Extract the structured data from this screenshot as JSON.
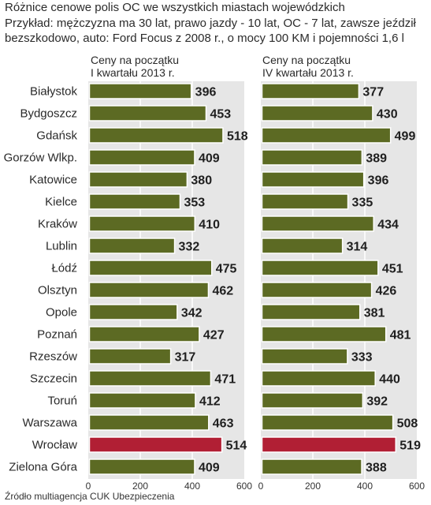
{
  "title": "Różnice cenowe polis OC we wszystkich miastach wojewódzkich",
  "subtitle": "Przykład: mężczyzna ma 30 lat, prawo jazdy - 10 lat, OC - 7 lat, zawsze jeździł bezszkodowo, auto: Ford Focus z 2008 r.,  o mocy 100 KM i pojemności 1,6 l",
  "source": "Źródło multiagencja CUK Ubezpieczenia",
  "colors": {
    "bar": "#5c6a23",
    "highlight": "#b11f34",
    "panel": "#e6e6e6",
    "grid": "#ffffff",
    "bar_border": "#ffffff"
  },
  "chart_data": [
    {
      "type": "bar",
      "orientation": "horizontal",
      "title": "Ceny na początku I kwartału 2013 r.",
      "categories": [
        "Białystok",
        "Bydgoszcz",
        "Gdańsk",
        "Gorzów Wlkp.",
        "Katowice",
        "Kielce",
        "Kraków",
        "Lublin",
        "Łódź",
        "Olsztyn",
        "Opole",
        "Poznań",
        "Rzeszów",
        "Szczecin",
        "Toruń",
        "Warszawa",
        "Wrocław",
        "Zielona Góra"
      ],
      "values": [
        396,
        453,
        518,
        409,
        380,
        353,
        410,
        332,
        475,
        462,
        342,
        427,
        317,
        471,
        412,
        463,
        514,
        409
      ],
      "highlight": "Wrocław",
      "xlim": [
        0,
        600
      ],
      "xticks": [
        0,
        200,
        400,
        600
      ],
      "grid": true
    },
    {
      "type": "bar",
      "orientation": "horizontal",
      "title": "Ceny na początku IV kwartału 2013 r.",
      "categories": [
        "Białystok",
        "Bydgoszcz",
        "Gdańsk",
        "Gorzów Wlkp.",
        "Katowice",
        "Kielce",
        "Kraków",
        "Lublin",
        "Łódź",
        "Olsztyn",
        "Opole",
        "Poznań",
        "Rzeszów",
        "Szczecin",
        "Toruń",
        "Warszawa",
        "Wrocław",
        "Zielona Góra"
      ],
      "values": [
        377,
        430,
        499,
        389,
        396,
        335,
        434,
        314,
        451,
        426,
        381,
        481,
        333,
        440,
        392,
        508,
        519,
        388
      ],
      "highlight": "Wrocław",
      "xlim": [
        0,
        600
      ],
      "xticks": [
        0,
        200,
        400,
        600
      ],
      "grid": true
    }
  ]
}
